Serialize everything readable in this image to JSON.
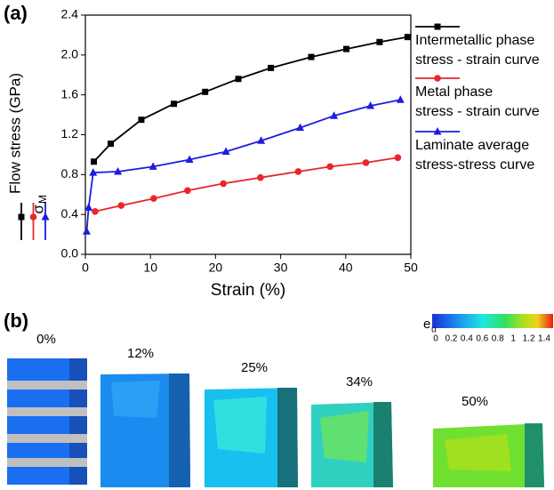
{
  "chart_data": {
    "type": "line",
    "panel_label": "(a)",
    "xlabel": "Strain (%)",
    "ylabel": "Flow stress (GPa)",
    "ylabel_symbol": "σ",
    "ylabel_symbol_sub": "M",
    "xlim": [
      0,
      50
    ],
    "xticks": [
      0,
      10,
      20,
      30,
      40,
      50
    ],
    "ylim": [
      0,
      2.4
    ],
    "yticks": [
      {
        "value": 0,
        "label": "0.0"
      },
      0.4,
      0.8,
      1.2,
      1.6,
      {
        "value": 2,
        "label": "2.0"
      },
      2.4
    ],
    "series": [
      {
        "name": "Intermetallic phase\nstress - strain curve",
        "color": "#000000",
        "marker": "square",
        "x": [
          1.3,
          3.9,
          8.6,
          13.6,
          18.4,
          23.5,
          28.5,
          34.7,
          40.1,
          45.2,
          49.5
        ],
        "values": [
          0.93,
          1.11,
          1.35,
          1.51,
          1.63,
          1.76,
          1.87,
          1.98,
          2.06,
          2.13,
          2.18
        ]
      },
      {
        "name": "Metal phase\nstress - strain curve",
        "color": "#e8262b",
        "marker": "circle",
        "x": [
          1.5,
          5.5,
          10.5,
          15.7,
          21.2,
          26.9,
          32.7,
          37.6,
          43.1,
          48
        ],
        "values": [
          0.43,
          0.49,
          0.56,
          0.64,
          0.71,
          0.77,
          0.83,
          0.88,
          0.92,
          0.97
        ]
      },
      {
        "name": "Laminate average\nstress-stress curve",
        "color": "#1c1ce0",
        "marker": "triangle",
        "x": [
          0.2,
          0.5,
          1.2,
          5,
          10.4,
          16,
          21.6,
          27,
          33,
          38.2,
          43.8,
          48.4
        ],
        "values": [
          0.23,
          0.47,
          0.82,
          0.83,
          0.88,
          0.95,
          1.03,
          1.14,
          1.27,
          1.39,
          1.49,
          1.55
        ]
      }
    ]
  },
  "panel_b": {
    "panel_label": "(b)",
    "snapshots": [
      "0%",
      "12%",
      "25%",
      "34%",
      "50%"
    ],
    "colorbar": {
      "label": "e",
      "label_sub": "u",
      "ticks": [
        0,
        0.2,
        0.4,
        0.6,
        0.8,
        1,
        1.2,
        1.4
      ]
    }
  }
}
